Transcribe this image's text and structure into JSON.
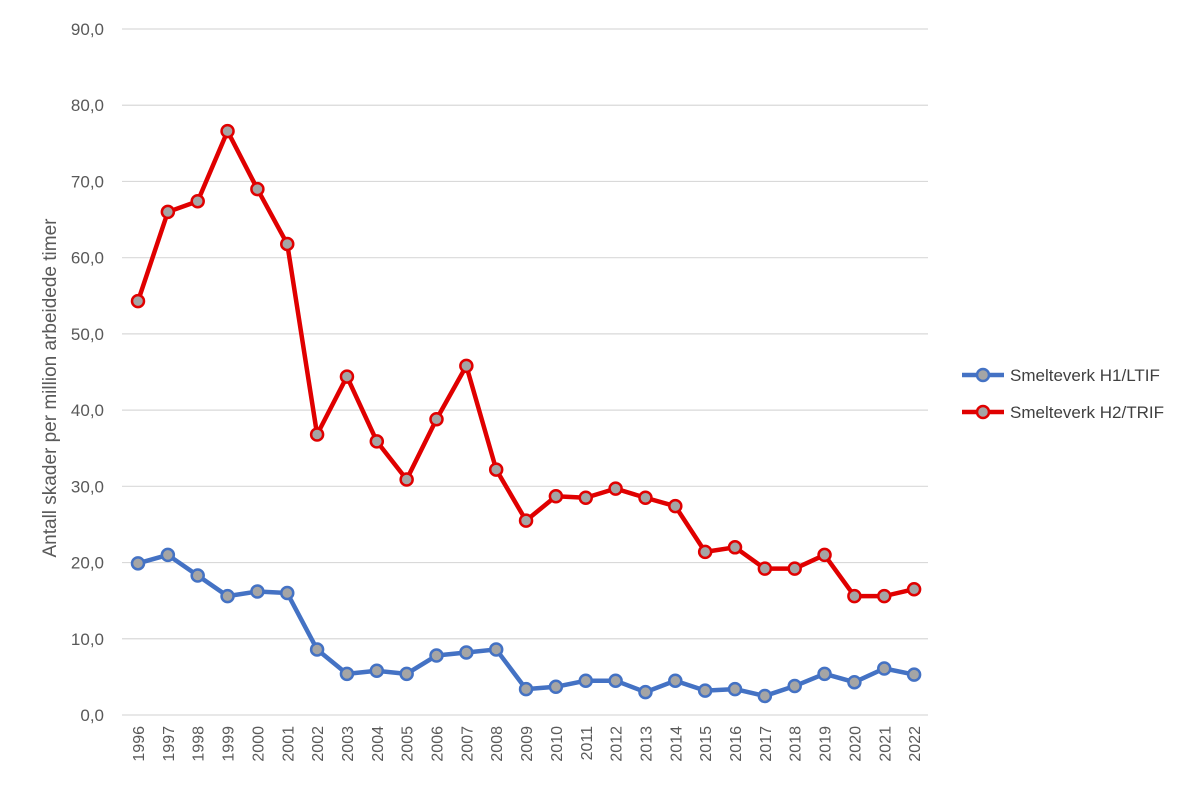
{
  "chart_data": {
    "type": "line",
    "title": "",
    "xlabel": "",
    "ylabel": "Antall skader per million arbeidede timer",
    "ylim": [
      0,
      90
    ],
    "y_ticks": [
      "0,0",
      "10,0",
      "20,0",
      "30,0",
      "40,0",
      "50,0",
      "60,0",
      "70,0",
      "80,0",
      "90,0"
    ],
    "grid": true,
    "legend_position": "right",
    "x": [
      "1996",
      "1997",
      "1998",
      "1999",
      "2000",
      "2001",
      "2002",
      "2003",
      "2004",
      "2005",
      "2006",
      "2007",
      "2008",
      "2009",
      "2010",
      "2011",
      "2012",
      "2013",
      "2014",
      "2015",
      "2016",
      "2017",
      "2018",
      "2019",
      "2020",
      "2021",
      "2022"
    ],
    "series": [
      {
        "name": "Smelteverk H1/LTIF",
        "color": "#4472C4",
        "values": [
          19.9,
          21.0,
          18.3,
          15.6,
          16.2,
          16.0,
          8.6,
          5.4,
          5.8,
          5.4,
          7.8,
          8.2,
          8.6,
          3.4,
          3.7,
          4.5,
          4.5,
          3.0,
          4.5,
          3.2,
          3.4,
          2.5,
          3.8,
          5.4,
          4.3,
          6.1,
          5.3
        ]
      },
      {
        "name": "Smelteverk H2/TRIF",
        "color": "#E00000",
        "values": [
          54.3,
          66.0,
          67.4,
          76.6,
          69.0,
          61.8,
          36.8,
          44.4,
          35.9,
          30.9,
          38.8,
          45.8,
          32.2,
          25.5,
          28.7,
          28.5,
          29.7,
          28.5,
          27.4,
          21.4,
          22.0,
          19.2,
          19.2,
          21.0,
          15.6,
          15.6,
          16.5
        ]
      }
    ],
    "colors": {
      "gridline": "#D9D9D9",
      "axis_text": "#595959",
      "marker_fill": "#A5A5A5"
    }
  }
}
